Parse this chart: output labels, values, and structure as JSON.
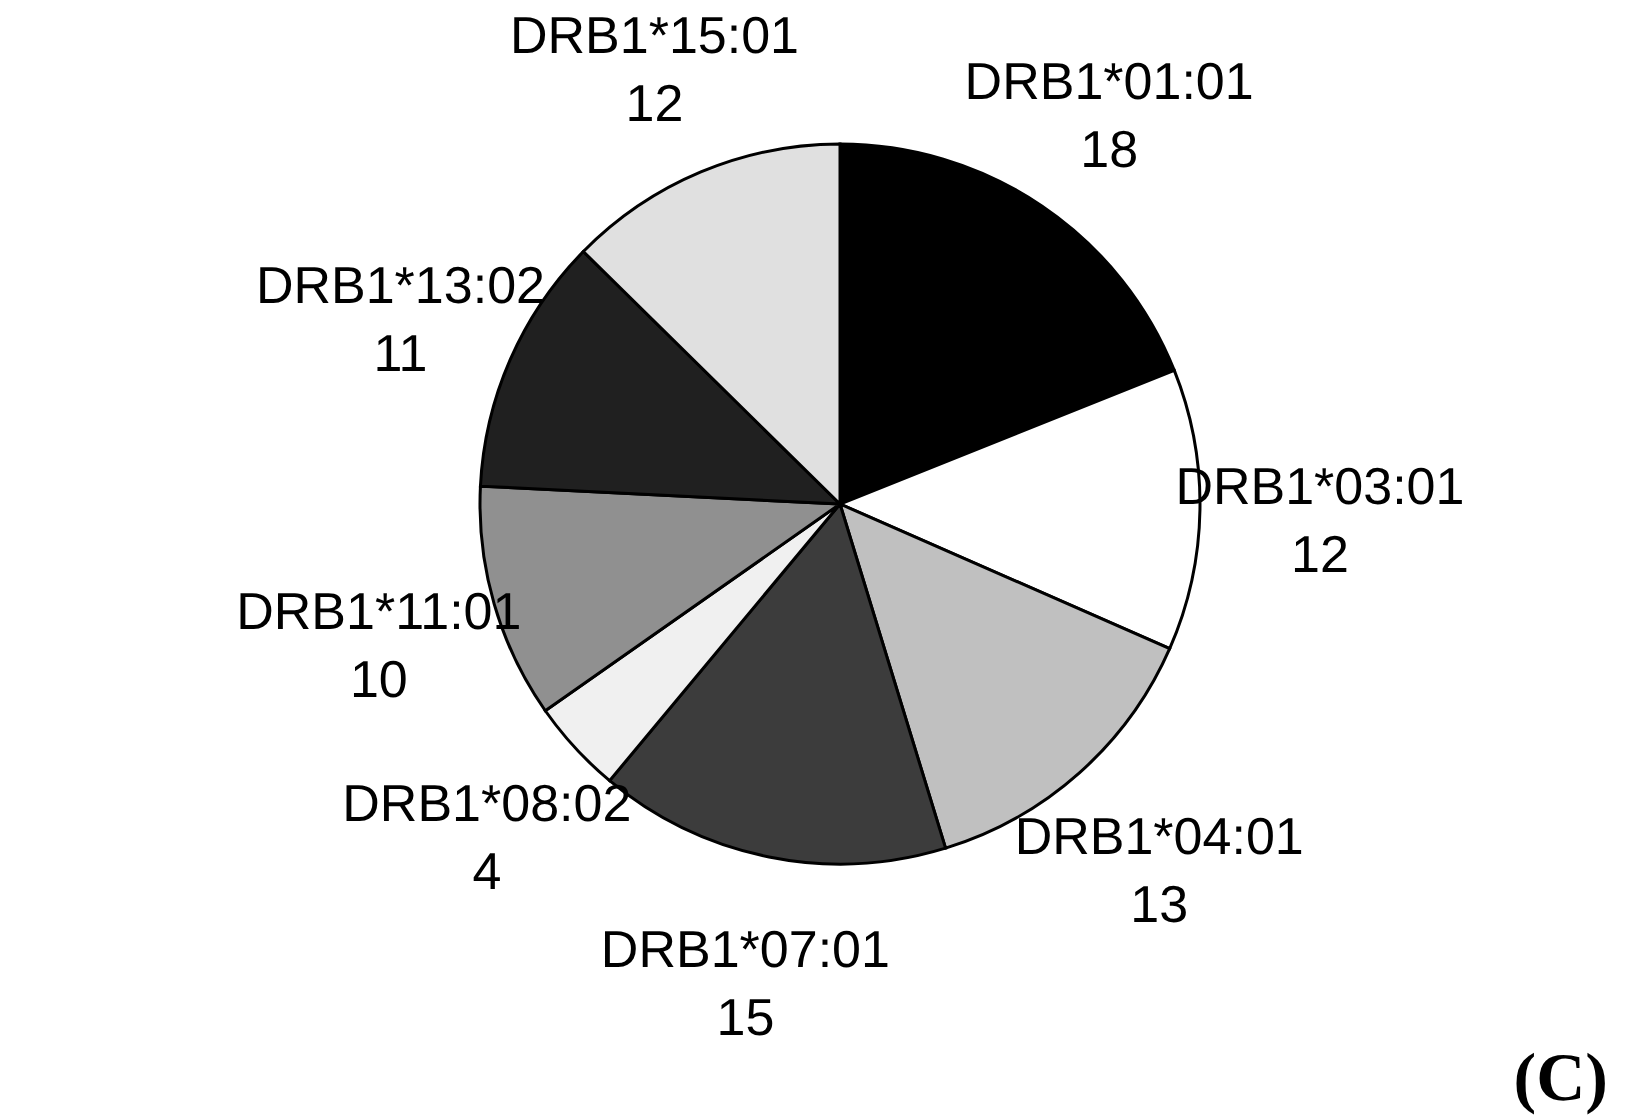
{
  "chart_data": {
    "type": "pie",
    "categories": [
      "DRB1*01:01",
      "DRB1*03:01",
      "DRB1*04:01",
      "DRB1*07:01",
      "DRB1*08:02",
      "DRB1*11:01",
      "DRB1*13:02",
      "DRB1*15:01"
    ],
    "values": [
      18,
      12,
      13,
      15,
      4,
      10,
      11,
      12
    ],
    "colors": [
      "#000000",
      "#ffffff",
      "#c0c0c0",
      "#3c3c3c",
      "#f0f0f0",
      "#909090",
      "#202020",
      "#e0e0e0"
    ],
    "data_labels": true,
    "annotations": [
      "(C)"
    ]
  }
}
